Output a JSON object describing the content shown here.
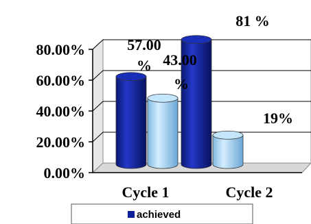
{
  "chart_data": {
    "type": "bar",
    "style": "3d-cylinder",
    "categories": [
      "Cycle 1",
      "Cycle 2"
    ],
    "series": [
      {
        "name": "achieved",
        "values": [
          57.0,
          81.0
        ],
        "color": "#0d1f9c",
        "labels": [
          "57.00 %",
          "81 %"
        ]
      },
      {
        "name": "",
        "values": [
          43.0,
          19.0
        ],
        "color": "#a9d8f7",
        "labels": [
          "43.00 %",
          "19%"
        ]
      }
    ],
    "yticks": [
      "0.00%",
      "20.00%",
      "40.00%",
      "60.00%",
      "80.00%"
    ],
    "ylim": [
      0,
      80
    ],
    "grid": true,
    "legend": {
      "position": "bottom",
      "entries": [
        "achieved"
      ]
    }
  }
}
